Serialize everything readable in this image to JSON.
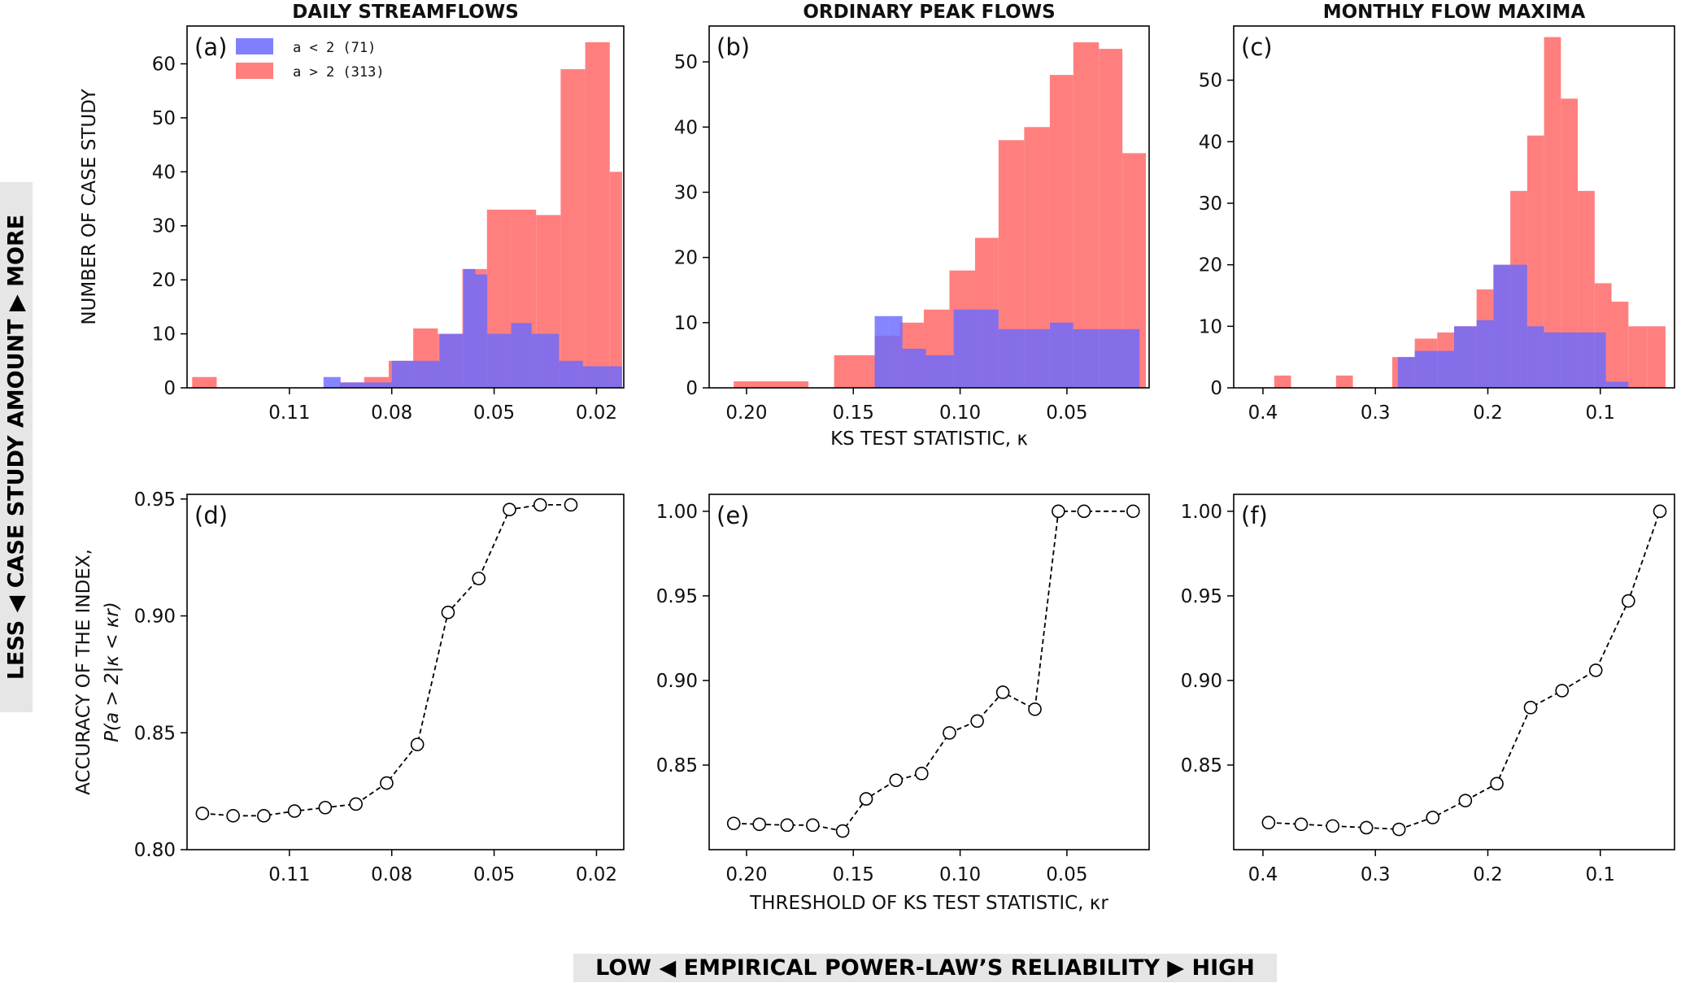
{
  "chart_data": [
    {
      "id": "a",
      "panel_label": "(a)",
      "type": "bar",
      "title": "DAILY STREAMFLOWS",
      "xlabel": "",
      "ylabel": "NUMBER OF CASE STUDY",
      "xlim": [
        0.14,
        0.012
      ],
      "ylim": [
        0,
        67
      ],
      "grid": false,
      "legend_position": "top-left",
      "xticks": [
        0.11,
        0.08,
        0.05,
        0.02
      ],
      "xtick_labels": [
        "0.11",
        "0.08",
        "0.05",
        "0.02"
      ],
      "yticks": [
        0,
        10,
        20,
        30,
        40,
        50,
        60
      ],
      "ytick_labels": [
        "0",
        "10",
        "20",
        "30",
        "40",
        "50",
        "60"
      ],
      "series": [
        {
          "name": "a > 2 (313)",
          "color": "#ff7f7f",
          "bins": [
            [
              0.1385,
              0.1313,
              2
            ],
            [
              0.1313,
              0.1241,
              0
            ],
            [
              0.1241,
              0.1169,
              0
            ],
            [
              0.1169,
              0.1097,
              0
            ],
            [
              0.1097,
              0.1025,
              0
            ],
            [
              0.1025,
              0.0953,
              0
            ],
            [
              0.0953,
              0.0881,
              1
            ],
            [
              0.0881,
              0.0809,
              2
            ],
            [
              0.0809,
              0.0737,
              5
            ],
            [
              0.0737,
              0.0665,
              11
            ],
            [
              0.0665,
              0.0593,
              10
            ],
            [
              0.0593,
              0.0521,
              22
            ],
            [
              0.0521,
              0.0449,
              33
            ],
            [
              0.0449,
              0.0377,
              33
            ],
            [
              0.0377,
              0.0305,
              32
            ],
            [
              0.0305,
              0.0233,
              59
            ],
            [
              0.0233,
              0.0161,
              64
            ],
            [
              0.0161,
              0.0125,
              40
            ]
          ]
        },
        {
          "name": "a < 2 (71)",
          "color": "#6a6aff",
          "bins": [
            [
              0.1,
              0.095,
              2
            ],
            [
              0.095,
              0.09,
              1
            ],
            [
              0.09,
              0.085,
              1
            ],
            [
              0.085,
              0.08,
              1
            ],
            [
              0.08,
              0.073,
              5
            ],
            [
              0.073,
              0.066,
              5
            ],
            [
              0.066,
              0.059,
              10
            ],
            [
              0.059,
              0.0555,
              22
            ],
            [
              0.0555,
              0.052,
              21
            ],
            [
              0.052,
              0.045,
              10
            ],
            [
              0.045,
              0.039,
              12
            ],
            [
              0.039,
              0.031,
              10
            ],
            [
              0.031,
              0.024,
              5
            ],
            [
              0.024,
              0.016,
              4
            ],
            [
              0.016,
              0.0125,
              4
            ]
          ]
        }
      ]
    },
    {
      "id": "b",
      "panel_label": "(b)",
      "type": "bar",
      "title": "ORDINARY PEAK FLOWS",
      "xlabel": "KS TEST STATISTIC, κ",
      "ylabel": "",
      "xlim": [
        0.2175,
        0.0115
      ],
      "ylim": [
        0,
        55.5
      ],
      "grid": false,
      "xticks": [
        0.2,
        0.15,
        0.1,
        0.05
      ],
      "xtick_labels": [
        "0.20",
        "0.15",
        "0.10",
        "0.05"
      ],
      "yticks": [
        0,
        10,
        20,
        30,
        40,
        50
      ],
      "ytick_labels": [
        "0",
        "10",
        "20",
        "30",
        "40",
        "50"
      ],
      "series": [
        {
          "name": "a > 2 (313)",
          "color": "#ff7f7f",
          "bins": [
            [
              0.206,
              0.171,
              1
            ],
            [
              0.171,
              0.159,
              0
            ],
            [
              0.159,
              0.14,
              5
            ],
            [
              0.14,
              0.128,
              8
            ],
            [
              0.128,
              0.117,
              10
            ],
            [
              0.117,
              0.105,
              12
            ],
            [
              0.105,
              0.093,
              18
            ],
            [
              0.093,
              0.082,
              23
            ],
            [
              0.082,
              0.07,
              38
            ],
            [
              0.07,
              0.058,
              40
            ],
            [
              0.058,
              0.047,
              48
            ],
            [
              0.047,
              0.035,
              53
            ],
            [
              0.035,
              0.024,
              52
            ],
            [
              0.024,
              0.013,
              36
            ]
          ]
        },
        {
          "name": "a < 2 (71)",
          "color": "#6a6aff",
          "bins": [
            [
              0.14,
              0.133,
              11
            ],
            [
              0.133,
              0.127,
              11
            ],
            [
              0.127,
              0.116,
              6
            ],
            [
              0.116,
              0.103,
              5
            ],
            [
              0.103,
              0.092,
              12
            ],
            [
              0.092,
              0.082,
              12
            ],
            [
              0.082,
              0.07,
              9
            ],
            [
              0.07,
              0.058,
              9
            ],
            [
              0.058,
              0.047,
              10
            ],
            [
              0.047,
              0.035,
              9
            ],
            [
              0.035,
              0.016,
              9
            ]
          ]
        }
      ]
    },
    {
      "id": "c",
      "panel_label": "(c)",
      "type": "bar",
      "title": "MONTHLY FLOW MAXIMA",
      "xlabel": "",
      "ylabel": "",
      "xlim": [
        0.426,
        0.034
      ],
      "ylim": [
        0,
        58.8
      ],
      "grid": false,
      "xticks": [
        0.4,
        0.3,
        0.2,
        0.1
      ],
      "xtick_labels": [
        "0.4",
        "0.3",
        "0.2",
        "0.1"
      ],
      "yticks": [
        0,
        10,
        20,
        30,
        40,
        50
      ],
      "ytick_labels": [
        "0",
        "10",
        "20",
        "30",
        "40",
        "50"
      ],
      "series": [
        {
          "name": "a > 2 (313)",
          "color": "#ff7f7f",
          "bins": [
            [
              0.39,
              0.375,
              2
            ],
            [
              0.375,
              0.335,
              0
            ],
            [
              0.335,
              0.32,
              2
            ],
            [
              0.32,
              0.285,
              0
            ],
            [
              0.285,
              0.265,
              5
            ],
            [
              0.265,
              0.245,
              8
            ],
            [
              0.245,
              0.23,
              9
            ],
            [
              0.23,
              0.21,
              10
            ],
            [
              0.21,
              0.195,
              16
            ],
            [
              0.195,
              0.18,
              20
            ],
            [
              0.18,
              0.165,
              32
            ],
            [
              0.165,
              0.15,
              41
            ],
            [
              0.15,
              0.135,
              57
            ],
            [
              0.135,
              0.12,
              47
            ],
            [
              0.12,
              0.105,
              32
            ],
            [
              0.105,
              0.09,
              17
            ],
            [
              0.09,
              0.075,
              14
            ],
            [
              0.075,
              0.058,
              10
            ],
            [
              0.058,
              0.042,
              10
            ]
          ]
        },
        {
          "name": "a < 2 (71)",
          "color": "#6a6aff",
          "bins": [
            [
              0.28,
              0.265,
              5
            ],
            [
              0.265,
              0.245,
              6
            ],
            [
              0.245,
              0.23,
              6
            ],
            [
              0.23,
              0.21,
              10
            ],
            [
              0.21,
              0.195,
              11
            ],
            [
              0.195,
              0.18,
              20
            ],
            [
              0.18,
              0.165,
              20
            ],
            [
              0.165,
              0.15,
              10
            ],
            [
              0.15,
              0.135,
              9
            ],
            [
              0.135,
              0.12,
              9
            ],
            [
              0.12,
              0.105,
              9
            ],
            [
              0.105,
              0.095,
              9
            ],
            [
              0.095,
              0.075,
              1
            ]
          ]
        }
      ]
    },
    {
      "id": "d",
      "panel_label": "(d)",
      "type": "line",
      "title": "",
      "xlabel": "",
      "ylabel": "ACCURACY OF THE INDEX,",
      "ylabel_math": "P(a > 2|κ < κr)",
      "xlim": [
        0.14,
        0.012
      ],
      "ylim": [
        0.8,
        0.952
      ],
      "grid": false,
      "xticks": [
        0.11,
        0.08,
        0.05,
        0.02
      ],
      "xtick_labels": [
        "0.11",
        "0.08",
        "0.05",
        "0.02"
      ],
      "yticks": [
        0.8,
        0.85,
        0.9,
        0.95
      ],
      "ytick_labels": [
        "0.80",
        "0.85",
        "0.90",
        "0.95"
      ],
      "series": [
        {
          "name": "",
          "line_style": "dashed",
          "marker": "open-circle",
          "x": [
            0.1355,
            0.1265,
            0.1175,
            0.1085,
            0.0995,
            0.0905,
            0.0815,
            0.0725,
            0.0635,
            0.0545,
            0.0455,
            0.0365,
            0.0275
          ],
          "y": [
            0.8155,
            0.8145,
            0.8145,
            0.8165,
            0.818,
            0.8195,
            0.8285,
            0.845,
            0.9015,
            0.916,
            0.9455,
            0.9475,
            0.9475
          ]
        }
      ]
    },
    {
      "id": "e",
      "panel_label": "(e)",
      "type": "line",
      "title": "",
      "xlabel": "THRESHOLD OF KS TEST STATISTIC, κr",
      "ylabel": "",
      "xlim": [
        0.2175,
        0.0115
      ],
      "ylim": [
        0.8,
        1.01
      ],
      "grid": false,
      "xticks": [
        0.2,
        0.15,
        0.1,
        0.05
      ],
      "xtick_labels": [
        "0.20",
        "0.15",
        "0.10",
        "0.05"
      ],
      "yticks": [
        0.85,
        0.9,
        0.95,
        1.0
      ],
      "ytick_labels": [
        "0.85",
        "0.90",
        "0.95",
        "1.00"
      ],
      "series": [
        {
          "name": "",
          "line_style": "dashed",
          "marker": "open-circle",
          "x": [
            0.206,
            0.194,
            0.181,
            0.169,
            0.155,
            0.144,
            0.13,
            0.118,
            0.105,
            0.092,
            0.08,
            0.065,
            0.054,
            0.042,
            0.019
          ],
          "y": [
            0.8155,
            0.815,
            0.8145,
            0.8145,
            0.811,
            0.83,
            0.841,
            0.845,
            0.869,
            0.876,
            0.893,
            0.883,
            1.0,
            1.0,
            1.0
          ]
        }
      ]
    },
    {
      "id": "f",
      "panel_label": "(f)",
      "type": "line",
      "title": "",
      "xlabel": "",
      "ylabel": "",
      "xlim": [
        0.426,
        0.034
      ],
      "ylim": [
        0.8,
        1.01
      ],
      "grid": false,
      "xticks": [
        0.4,
        0.3,
        0.2,
        0.1
      ],
      "xtick_labels": [
        "0.4",
        "0.3",
        "0.2",
        "0.1"
      ],
      "yticks": [
        0.85,
        0.9,
        0.95,
        1.0
      ],
      "ytick_labels": [
        "0.85",
        "0.90",
        "0.95",
        "1.00"
      ],
      "series": [
        {
          "name": "",
          "line_style": "dashed",
          "marker": "open-circle",
          "x": [
            0.395,
            0.366,
            0.338,
            0.308,
            0.279,
            0.249,
            0.22,
            0.192,
            0.162,
            0.134,
            0.104,
            0.075,
            0.047
          ],
          "y": [
            0.816,
            0.815,
            0.814,
            0.813,
            0.812,
            0.819,
            0.829,
            0.839,
            0.884,
            0.894,
            0.906,
            0.947,
            1.0
          ]
        }
      ]
    }
  ],
  "side_banner": {
    "text": "LESS ◀ CASE STUDY AMOUNT ▶ MORE"
  },
  "bottom_banner": {
    "text": "LOW ◀ EMPIRICAL POWER-LAW’S RELIABILITY ▶ HIGH"
  }
}
